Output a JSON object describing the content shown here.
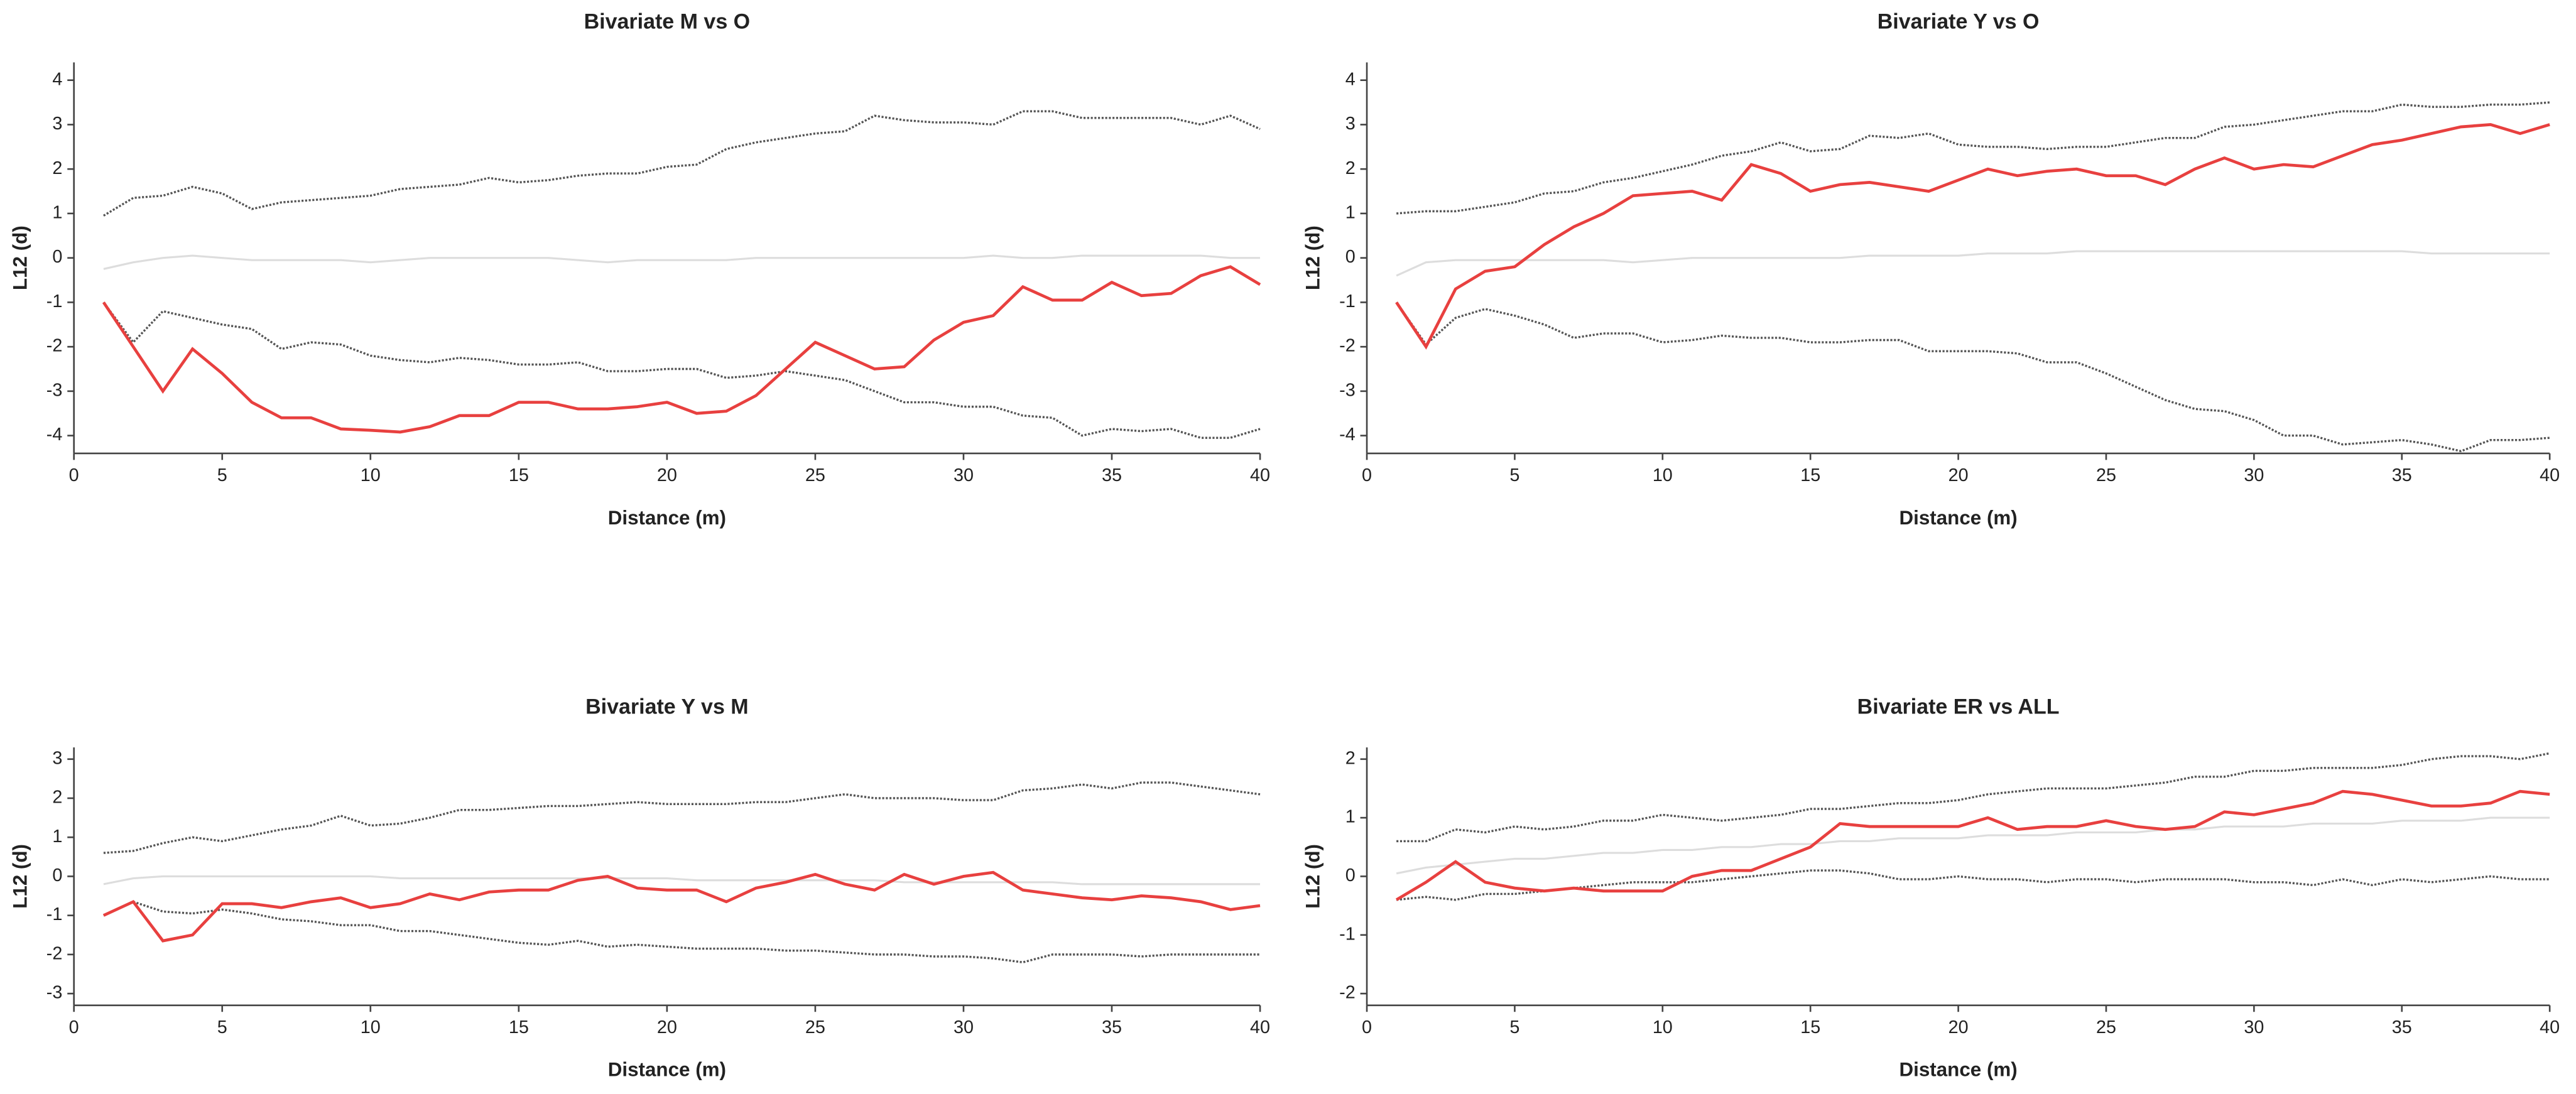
{
  "chart_data": [
    {
      "type": "line",
      "title": "Bivariate M vs O",
      "xlabel": "Distance (m)",
      "ylabel": "L12 (d)",
      "x": [
        1,
        2,
        3,
        4,
        5,
        6,
        7,
        8,
        9,
        10,
        11,
        12,
        13,
        14,
        15,
        16,
        17,
        18,
        19,
        20,
        21,
        22,
        23,
        24,
        25,
        26,
        27,
        28,
        29,
        30,
        31,
        32,
        33,
        34,
        35,
        36,
        37,
        38,
        39,
        40
      ],
      "xlim": [
        0,
        40
      ],
      "xticks": [
        0,
        5,
        10,
        15,
        20,
        25,
        30,
        35,
        40
      ],
      "ylim": [
        -4.4,
        4.4
      ],
      "yticks": [
        -4,
        -3,
        -2,
        -1,
        0,
        1,
        2,
        3,
        4
      ],
      "series": [
        {
          "color": "#dddddd",
          "dash": "solid",
          "values": [
            -0.25,
            -0.1,
            0,
            0.05,
            0,
            -0.05,
            -0.05,
            -0.05,
            -0.05,
            -0.1,
            -0.05,
            0,
            0,
            0,
            0,
            0,
            -0.05,
            -0.1,
            -0.05,
            -0.05,
            -0.05,
            -0.05,
            0,
            0,
            0,
            0,
            0,
            0,
            0,
            0,
            0.05,
            0,
            0,
            0.05,
            0.05,
            0.05,
            0.05,
            0.05,
            0,
            0
          ]
        },
        {
          "color": "#555555",
          "dash": "dotted",
          "values": [
            0.95,
            1.35,
            1.4,
            1.6,
            1.45,
            1.1,
            1.25,
            1.3,
            1.35,
            1.4,
            1.55,
            1.6,
            1.65,
            1.8,
            1.7,
            1.75,
            1.85,
            1.9,
            1.9,
            2.05,
            2.1,
            2.45,
            2.6,
            2.7,
            2.8,
            2.85,
            3.2,
            3.1,
            3.05,
            3.05,
            3.0,
            3.3,
            3.3,
            3.15,
            3.15,
            3.15,
            3.15,
            3.0,
            3.2,
            2.9
          ]
        },
        {
          "color": "#555555",
          "dash": "dotted",
          "values": [
            -1.0,
            -1.9,
            -1.2,
            -1.35,
            -1.5,
            -1.6,
            -2.05,
            -1.9,
            -1.95,
            -2.2,
            -2.3,
            -2.35,
            -2.25,
            -2.3,
            -2.4,
            -2.4,
            -2.35,
            -2.55,
            -2.55,
            -2.5,
            -2.5,
            -2.7,
            -2.65,
            -2.55,
            -2.65,
            -2.75,
            -3.0,
            -3.25,
            -3.25,
            -3.35,
            -3.35,
            -3.55,
            -3.6,
            -4.0,
            -3.85,
            -3.9,
            -3.85,
            -4.05,
            -4.05,
            -3.85
          ]
        },
        {
          "color": "#e8403f",
          "dash": "solid",
          "values": [
            -1,
            -2,
            -3,
            -2.05,
            -2.6,
            -3.25,
            -3.6,
            -3.6,
            -3.85,
            -3.88,
            -3.92,
            -3.8,
            -3.55,
            -3.55,
            -3.25,
            -3.25,
            -3.4,
            -3.4,
            -3.35,
            -3.25,
            -3.5,
            -3.45,
            -3.1,
            -2.5,
            -1.9,
            -2.2,
            -2.5,
            -2.45,
            -1.85,
            -1.45,
            -1.3,
            -0.65,
            -0.95,
            -0.95,
            -0.55,
            -0.85,
            -0.8,
            -0.4,
            -0.2,
            -0.6
          ]
        }
      ]
    },
    {
      "type": "line",
      "title": "Bivariate Y vs O",
      "xlabel": "Distance (m)",
      "ylabel": "L12 (d)",
      "x": [
        1,
        2,
        3,
        4,
        5,
        6,
        7,
        8,
        9,
        10,
        11,
        12,
        13,
        14,
        15,
        16,
        17,
        18,
        19,
        20,
        21,
        22,
        23,
        24,
        25,
        26,
        27,
        28,
        29,
        30,
        31,
        32,
        33,
        34,
        35,
        36,
        37,
        38,
        39,
        40
      ],
      "xlim": [
        0,
        40
      ],
      "xticks": [
        0,
        5,
        10,
        15,
        20,
        25,
        30,
        35,
        40
      ],
      "ylim": [
        -4.4,
        4.4
      ],
      "yticks": [
        -4,
        -3,
        -2,
        -1,
        0,
        1,
        2,
        3,
        4
      ],
      "series": [
        {
          "color": "#dddddd",
          "dash": "solid",
          "values": [
            -0.4,
            -0.1,
            -0.05,
            -0.05,
            -0.05,
            -0.05,
            -0.05,
            -0.05,
            -0.1,
            -0.05,
            0,
            0,
            0,
            0,
            0,
            0,
            0.05,
            0.05,
            0.05,
            0.05,
            0.1,
            0.1,
            0.1,
            0.15,
            0.15,
            0.15,
            0.15,
            0.15,
            0.15,
            0.15,
            0.15,
            0.15,
            0.15,
            0.15,
            0.15,
            0.1,
            0.1,
            0.1,
            0.1,
            0.1
          ]
        },
        {
          "color": "#555555",
          "dash": "dotted",
          "values": [
            1.0,
            1.05,
            1.05,
            1.15,
            1.25,
            1.45,
            1.5,
            1.7,
            1.8,
            1.95,
            2.1,
            2.3,
            2.4,
            2.6,
            2.4,
            2.45,
            2.75,
            2.7,
            2.8,
            2.55,
            2.5,
            2.5,
            2.45,
            2.5,
            2.5,
            2.6,
            2.7,
            2.7,
            2.95,
            3.0,
            3.1,
            3.2,
            3.3,
            3.3,
            3.45,
            3.4,
            3.4,
            3.45,
            3.45,
            3.5
          ]
        },
        {
          "color": "#555555",
          "dash": "dotted",
          "values": [
            -1,
            -1.95,
            -1.35,
            -1.15,
            -1.3,
            -1.5,
            -1.8,
            -1.7,
            -1.7,
            -1.9,
            -1.85,
            -1.75,
            -1.8,
            -1.8,
            -1.9,
            -1.9,
            -1.85,
            -1.85,
            -2.1,
            -2.1,
            -2.1,
            -2.15,
            -2.35,
            -2.35,
            -2.6,
            -2.9,
            -3.2,
            -3.4,
            -3.45,
            -3.65,
            -4.0,
            -4.0,
            -4.2,
            -4.15,
            -4.1,
            -4.2,
            -4.35,
            -4.1,
            -4.1,
            -4.05
          ]
        },
        {
          "color": "#e8403f",
          "dash": "solid",
          "values": [
            -1,
            -2,
            -0.7,
            -0.3,
            -0.2,
            0.3,
            0.7,
            1.0,
            1.4,
            1.45,
            1.5,
            1.3,
            2.1,
            1.9,
            1.5,
            1.65,
            1.7,
            1.6,
            1.5,
            1.75,
            2.0,
            1.85,
            1.95,
            2.0,
            1.85,
            1.85,
            1.65,
            2.0,
            2.25,
            2.0,
            2.1,
            2.05,
            2.3,
            2.55,
            2.65,
            2.8,
            2.95,
            3.0,
            2.8,
            3.0
          ]
        }
      ]
    },
    {
      "type": "line",
      "title": "Bivariate Y vs M",
      "xlabel": "Distance (m)",
      "ylabel": "L12 (d)",
      "x": [
        1,
        2,
        3,
        4,
        5,
        6,
        7,
        8,
        9,
        10,
        11,
        12,
        13,
        14,
        15,
        16,
        17,
        18,
        19,
        20,
        21,
        22,
        23,
        24,
        25,
        26,
        27,
        28,
        29,
        30,
        31,
        32,
        33,
        34,
        35,
        36,
        37,
        38,
        39,
        40
      ],
      "xlim": [
        0,
        40
      ],
      "xticks": [
        0,
        5,
        10,
        15,
        20,
        25,
        30,
        35,
        40
      ],
      "ylim": [
        -3.3,
        3.3
      ],
      "yticks": [
        -3,
        -2,
        -1,
        0,
        1,
        2,
        3
      ],
      "series": [
        {
          "color": "#dddddd",
          "dash": "solid",
          "values": [
            -0.2,
            -0.05,
            0,
            0,
            0,
            0,
            0,
            0,
            0,
            0,
            -0.05,
            -0.05,
            -0.05,
            -0.05,
            -0.05,
            -0.05,
            -0.05,
            -0.05,
            -0.05,
            -0.05,
            -0.1,
            -0.1,
            -0.1,
            -0.1,
            -0.1,
            -0.1,
            -0.1,
            -0.15,
            -0.15,
            -0.15,
            -0.15,
            -0.15,
            -0.15,
            -0.2,
            -0.2,
            -0.2,
            -0.2,
            -0.2,
            -0.2,
            -0.2
          ]
        },
        {
          "color": "#555555",
          "dash": "dotted",
          "values": [
            0.6,
            0.65,
            0.85,
            1.0,
            0.9,
            1.05,
            1.2,
            1.3,
            1.55,
            1.3,
            1.35,
            1.5,
            1.7,
            1.7,
            1.75,
            1.8,
            1.8,
            1.85,
            1.9,
            1.85,
            1.85,
            1.85,
            1.9,
            1.9,
            2.0,
            2.1,
            2.0,
            2.0,
            2.0,
            1.95,
            1.95,
            2.2,
            2.25,
            2.35,
            2.25,
            2.4,
            2.4,
            2.3,
            2.2,
            2.1
          ]
        },
        {
          "color": "#555555",
          "dash": "dotted",
          "values": [
            -1,
            -0.65,
            -0.9,
            -0.95,
            -0.85,
            -0.95,
            -1.1,
            -1.15,
            -1.25,
            -1.25,
            -1.4,
            -1.4,
            -1.5,
            -1.6,
            -1.7,
            -1.75,
            -1.65,
            -1.8,
            -1.75,
            -1.8,
            -1.85,
            -1.85,
            -1.85,
            -1.9,
            -1.9,
            -1.95,
            -2.0,
            -2.0,
            -2.05,
            -2.05,
            -2.1,
            -2.2,
            -2.0,
            -2.0,
            -2.0,
            -2.05,
            -2.0,
            -2.0,
            -2.0,
            -2.0
          ]
        },
        {
          "color": "#e8403f",
          "dash": "solid",
          "values": [
            -1,
            -0.65,
            -1.65,
            -1.5,
            -0.7,
            -0.7,
            -0.8,
            -0.65,
            -0.55,
            -0.8,
            -0.7,
            -0.45,
            -0.6,
            -0.4,
            -0.35,
            -0.35,
            -0.1,
            0,
            -0.3,
            -0.35,
            -0.35,
            -0.65,
            -0.3,
            -0.15,
            0.05,
            -0.2,
            -0.35,
            0.05,
            -0.2,
            0,
            0.1,
            -0.35,
            -0.45,
            -0.55,
            -0.6,
            -0.5,
            -0.55,
            -0.65,
            -0.85,
            -0.75
          ]
        }
      ]
    },
    {
      "type": "line",
      "title": "Bivariate ER vs ALL",
      "xlabel": "Distance (m)",
      "ylabel": "L12 (d)",
      "x": [
        1,
        2,
        3,
        4,
        5,
        6,
        7,
        8,
        9,
        10,
        11,
        12,
        13,
        14,
        15,
        16,
        17,
        18,
        19,
        20,
        21,
        22,
        23,
        24,
        25,
        26,
        27,
        28,
        29,
        30,
        31,
        32,
        33,
        34,
        35,
        36,
        37,
        38,
        39,
        40
      ],
      "xlim": [
        0,
        40
      ],
      "xticks": [
        0,
        5,
        10,
        15,
        20,
        25,
        30,
        35,
        40
      ],
      "ylim": [
        -2.2,
        2.2
      ],
      "yticks": [
        -2,
        -1,
        0,
        1,
        2
      ],
      "series": [
        {
          "color": "#dddddd",
          "dash": "solid",
          "values": [
            0.05,
            0.15,
            0.2,
            0.25,
            0.3,
            0.3,
            0.35,
            0.4,
            0.4,
            0.45,
            0.45,
            0.5,
            0.5,
            0.55,
            0.55,
            0.6,
            0.6,
            0.65,
            0.65,
            0.65,
            0.7,
            0.7,
            0.7,
            0.75,
            0.75,
            0.75,
            0.8,
            0.8,
            0.85,
            0.85,
            0.85,
            0.9,
            0.9,
            0.9,
            0.95,
            0.95,
            0.95,
            1.0,
            1.0,
            1.0
          ]
        },
        {
          "color": "#555555",
          "dash": "dotted",
          "values": [
            0.6,
            0.6,
            0.8,
            0.75,
            0.85,
            0.8,
            0.85,
            0.95,
            0.95,
            1.05,
            1.0,
            0.95,
            1.0,
            1.05,
            1.15,
            1.15,
            1.2,
            1.25,
            1.25,
            1.3,
            1.4,
            1.45,
            1.5,
            1.5,
            1.5,
            1.55,
            1.6,
            1.7,
            1.7,
            1.8,
            1.8,
            1.85,
            1.85,
            1.85,
            1.9,
            2.0,
            2.05,
            2.05,
            2.0,
            2.1
          ]
        },
        {
          "color": "#555555",
          "dash": "dotted",
          "values": [
            -0.4,
            -0.35,
            -0.4,
            -0.3,
            -0.3,
            -0.25,
            -0.2,
            -0.15,
            -0.1,
            -0.1,
            -0.1,
            -0.05,
            0,
            0.05,
            0.1,
            0.1,
            0.05,
            -0.05,
            -0.05,
            0,
            -0.05,
            -0.05,
            -0.1,
            -0.05,
            -0.05,
            -0.1,
            -0.05,
            -0.05,
            -0.05,
            -0.1,
            -0.1,
            -0.15,
            -0.05,
            -0.15,
            -0.05,
            -0.1,
            -0.05,
            0,
            -0.05,
            -0.05
          ]
        },
        {
          "color": "#e8403f",
          "dash": "solid",
          "values": [
            -0.4,
            -0.1,
            0.25,
            -0.1,
            -0.2,
            -0.25,
            -0.2,
            -0.25,
            -0.25,
            -0.25,
            0,
            0.1,
            0.1,
            0.3,
            0.5,
            0.9,
            0.85,
            0.85,
            0.85,
            0.85,
            1.0,
            0.8,
            0.85,
            0.85,
            0.95,
            0.85,
            0.8,
            0.85,
            1.1,
            1.05,
            1.15,
            1.25,
            1.45,
            1.4,
            1.3,
            1.2,
            1.2,
            1.25,
            1.45,
            1.4
          ]
        }
      ]
    }
  ]
}
